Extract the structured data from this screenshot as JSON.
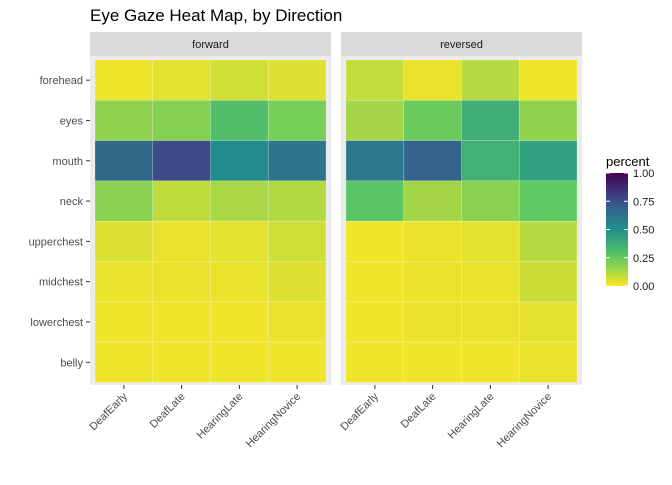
{
  "chart_data": {
    "type": "heatmap",
    "title": "Eye Gaze Heat Map, by Direction",
    "xlabel": "",
    "ylabel": "",
    "facets": [
      "forward",
      "reversed"
    ],
    "x_categories": [
      "DeafEarly",
      "DeafLate",
      "HearingLate",
      "HearingNovice"
    ],
    "y_categories": [
      "forehead",
      "eyes",
      "mouth",
      "neck",
      "upperchest",
      "midchest",
      "lowerchest",
      "belly"
    ],
    "values": {
      "forward": [
        [
          0.02,
          0.04,
          0.07,
          0.05
        ],
        [
          0.17,
          0.19,
          0.3,
          0.21
        ],
        [
          0.66,
          0.77,
          0.52,
          0.61
        ],
        [
          0.18,
          0.1,
          0.13,
          0.12
        ],
        [
          0.05,
          0.03,
          0.04,
          0.07
        ],
        [
          0.03,
          0.03,
          0.03,
          0.05
        ],
        [
          0.02,
          0.02,
          0.02,
          0.03
        ],
        [
          0.02,
          0.02,
          0.02,
          0.02
        ]
      ],
      "reversed": [
        [
          0.09,
          0.03,
          0.11,
          0.02
        ],
        [
          0.14,
          0.23,
          0.37,
          0.17
        ],
        [
          0.6,
          0.68,
          0.36,
          0.43
        ],
        [
          0.27,
          0.14,
          0.18,
          0.25
        ],
        [
          0.02,
          0.03,
          0.04,
          0.11
        ],
        [
          0.02,
          0.03,
          0.03,
          0.08
        ],
        [
          0.02,
          0.03,
          0.03,
          0.04
        ],
        [
          0.02,
          0.02,
          0.02,
          0.03
        ]
      ]
    },
    "legend": {
      "title": "percent",
      "ticks": [
        "0.00",
        "0.25",
        "0.50",
        "0.75",
        "1.00"
      ],
      "tick_values": [
        0,
        0.25,
        0.5,
        0.75,
        1.0
      ],
      "position": "right"
    },
    "zlim": [
      0,
      1
    ],
    "grid": true
  },
  "colors": {
    "panel_background": "#ebebeb",
    "strip_background": "#d9d9d9",
    "gridline": "#ffffff",
    "palette": "viridis (reversed: low = yellow, high = purple)"
  }
}
